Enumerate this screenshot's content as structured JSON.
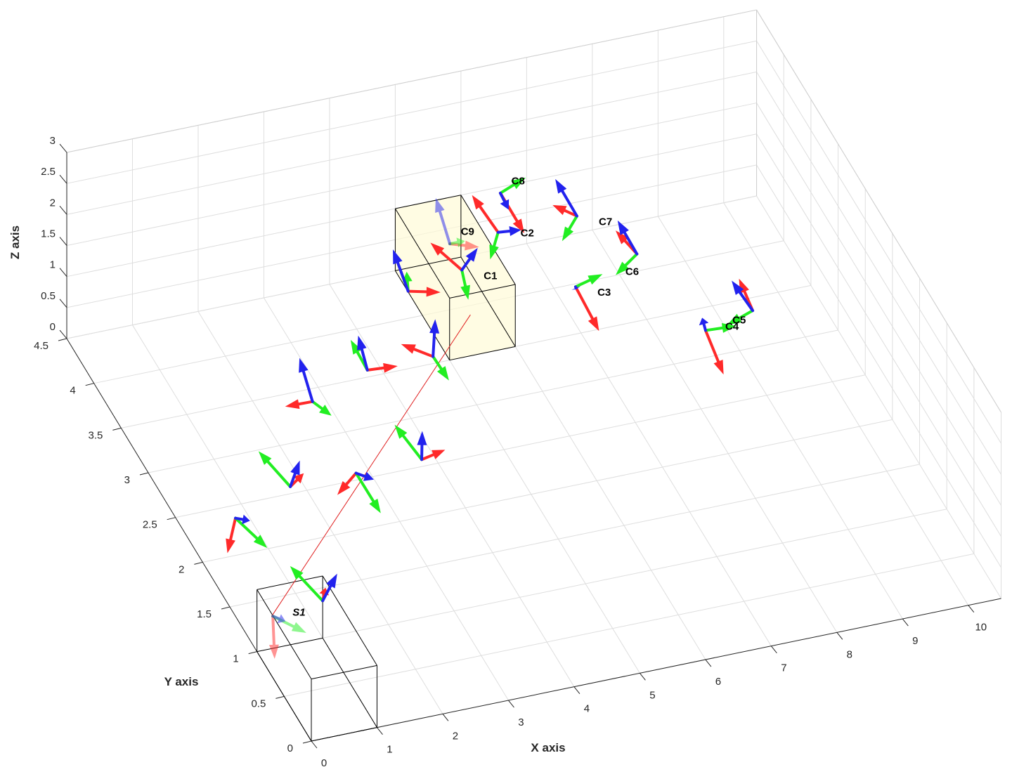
{
  "colors": {
    "x_arrow": "#ff2a2a",
    "y_arrow": "#22ee22",
    "z_arrow": "#2222ee",
    "ray": "#e02020",
    "grid": "#dedede",
    "box_fill": "#fffbd8",
    "box_edge": "#000000"
  },
  "chart_data": {
    "type": "scatter",
    "title": "",
    "xlabel": "X axis",
    "ylabel": "Y axis",
    "zlabel": "Z axis",
    "xlim": [
      0,
      10.5
    ],
    "ylim": [
      0,
      4.5
    ],
    "zlim": [
      0,
      3
    ],
    "grid": true,
    "x_ticks": [
      "0",
      "1",
      "2",
      "3",
      "4",
      "5",
      "6",
      "7",
      "8",
      "9",
      "10"
    ],
    "y_ticks": [
      "0",
      "0.5",
      "1",
      "1.5",
      "2",
      "2.5",
      "3",
      "3.5",
      "4",
      "4.5"
    ],
    "z_ticks": [
      "0",
      "0.5",
      "1",
      "1.5",
      "2",
      "2.5",
      "3"
    ],
    "boxes": [
      {
        "name": "sensor-box",
        "x": [
          0,
          1
        ],
        "y": [
          0,
          1
        ],
        "z": [
          0,
          1
        ],
        "filled": false
      },
      {
        "name": "target-box",
        "x": [
          5,
          6
        ],
        "y": [
          3.5,
          4.5
        ],
        "z": [
          0,
          1
        ],
        "filled": true
      }
    ],
    "ray": {
      "from": [
        0.18,
        0.95,
        0.6
      ],
      "to": [
        5.4,
        3.6,
        0.5
      ]
    },
    "frames": [
      {
        "label": "S1",
        "x": 0.2,
        "y": 0.95,
        "z": 0.6,
        "faded": true,
        "lx": 0.3,
        "ly": 0.0
      },
      {
        "label": "",
        "x": 1.0,
        "y": 1.0,
        "z": 0.6,
        "faded": false
      },
      {
        "label": "",
        "x": 0.5,
        "y": 2.0,
        "z": 0.6,
        "faded": false
      },
      {
        "label": "",
        "x": 1.5,
        "y": 2.2,
        "z": 0.6,
        "faded": false
      },
      {
        "label": "",
        "x": 2.5,
        "y": 2.2,
        "z": 0.6,
        "faded": false
      },
      {
        "label": "",
        "x": 3.5,
        "y": 2.2,
        "z": 0.6,
        "faded": false
      },
      {
        "label": "",
        "x": 2.5,
        "y": 3.0,
        "z": 0.6,
        "faded": false
      },
      {
        "label": "",
        "x": 3.5,
        "y": 3.2,
        "z": 0.6,
        "faded": false
      },
      {
        "label": "",
        "x": 4.5,
        "y": 3.2,
        "z": 0.6,
        "faded": false
      },
      {
        "label": "",
        "x": 4.7,
        "y": 3.9,
        "z": 0.6,
        "faded": false
      },
      {
        "label": "C1",
        "x": 5.6,
        "y": 4.0,
        "z": 0.6,
        "faded": false,
        "lx": 0.25,
        "ly": -0.1
      },
      {
        "label": "C9",
        "x": 5.5,
        "y": 4.1,
        "z": 0.9,
        "faded": true,
        "lx": 0.25,
        "ly": 0.1
      },
      {
        "label": "C2",
        "x": 6.4,
        "y": 4.3,
        "z": 0.6,
        "faded": false,
        "lx": 0.3,
        "ly": -0.05
      },
      {
        "label": "C8",
        "x": 6.6,
        "y": 4.5,
        "z": 0.9,
        "faded": false,
        "lx": 0.25,
        "ly": 0.1
      },
      {
        "label": "C7",
        "x": 7.6,
        "y": 4.3,
        "z": 0.6,
        "faded": false,
        "lx": 0.25,
        "ly": -0.1
      },
      {
        "label": "C3",
        "x": 7.0,
        "y": 3.6,
        "z": 0.6,
        "faded": false,
        "lx": 0.25,
        "ly": -0.1
      },
      {
        "label": "C6",
        "x": 8.1,
        "y": 3.8,
        "z": 0.6,
        "faded": false,
        "lx": -0.3,
        "ly": -0.15
      },
      {
        "label": "C4",
        "x": 8.4,
        "y": 2.9,
        "z": 0.6,
        "faded": false,
        "lx": 0.3,
        "ly": 0.0
      },
      {
        "label": "C5",
        "x": 9.2,
        "y": 3.0,
        "z": 0.6,
        "faded": false,
        "lx": -0.35,
        "ly": -0.05
      }
    ]
  }
}
